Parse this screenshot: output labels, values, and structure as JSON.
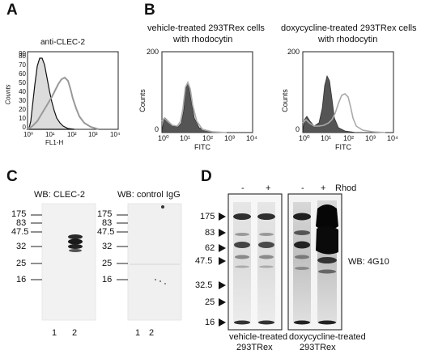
{
  "panels": {
    "a": {
      "letter": "A",
      "title": "anti-CLEC-2",
      "yaxis_label": "Counts",
      "yticks": [
        "0",
        "10",
        "20",
        "30",
        "40",
        "50",
        "60",
        "70",
        "80",
        "90"
      ],
      "xticks": [
        "10⁰",
        "10¹",
        "10²",
        "10³",
        "10⁴"
      ],
      "xaxis_label": "FL1-H"
    },
    "b": {
      "letter": "B",
      "left_title_line1": "vehicle-treated 293TRex cells",
      "left_title_line2": "with rhodocytin",
      "right_title_line1": "doxycycline-treated 293TRex cells",
      "right_title_line2": "with rhodocytin",
      "yaxis_label": "Counts",
      "yticks": [
        "0",
        "200"
      ],
      "xticks": [
        "10⁰",
        "10¹",
        "10²",
        "10³",
        "10⁴"
      ],
      "xaxis_label": "FITC"
    },
    "c": {
      "letter": "C",
      "left_title": "WB: CLEC-2",
      "right_title": "WB: control IgG",
      "markers": [
        "175",
        "83",
        "47.5",
        "32",
        "25",
        "16"
      ],
      "lanes": [
        "1",
        "2"
      ]
    },
    "d": {
      "letter": "D",
      "lane_minus": "-",
      "lane_plus": "+",
      "rhod_label": "Rhod",
      "markers": [
        "175",
        "83",
        "62",
        "47.5",
        "32.5",
        "25",
        "16"
      ],
      "wb_label": "WB: 4G10",
      "left_caption_line1": "vehicle-treated",
      "left_caption_line2": "293TRex",
      "right_caption_line1": "doxycycline-treated",
      "right_caption_line2": "293TRex"
    }
  }
}
